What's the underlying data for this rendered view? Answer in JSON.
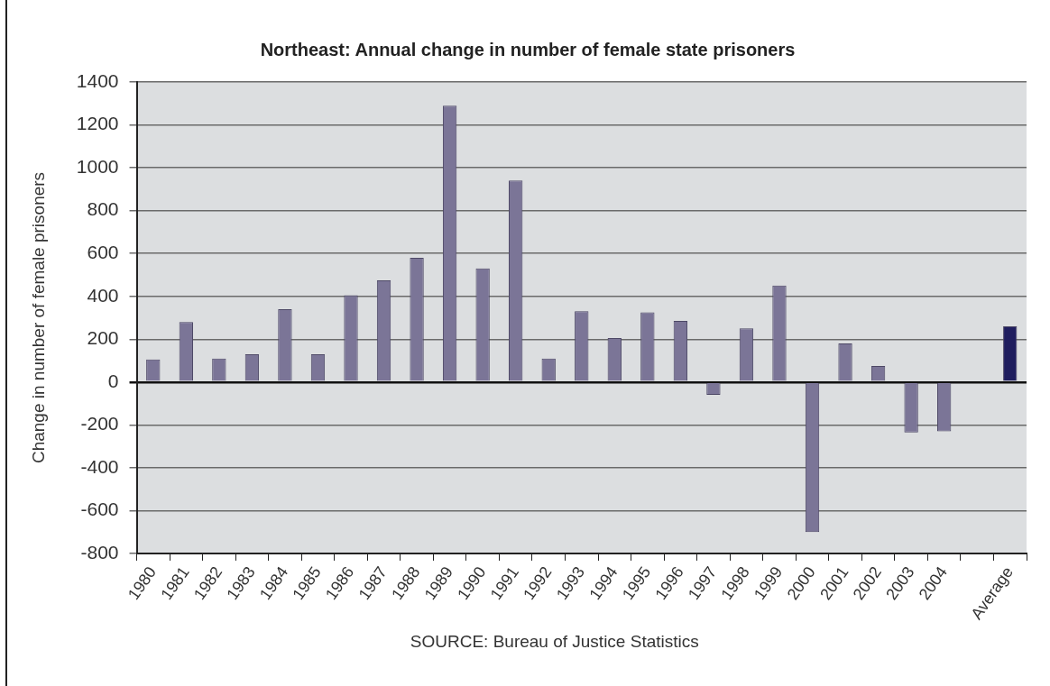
{
  "chart_data": {
    "type": "bar",
    "title": "Northeast: Annual change in number of female state prisoners",
    "ylabel": "Change in number of female prisoners",
    "annotations": [
      "SOURCE: Bureau of Justice Statistics"
    ],
    "categories": [
      "1980",
      "1981",
      "1982",
      "1983",
      "1984",
      "1985",
      "1986",
      "1987",
      "1988",
      "1989",
      "1990",
      "1991",
      "1992",
      "1993",
      "1994",
      "1995",
      "1996",
      "1997",
      "1998",
      "1999",
      "2000",
      "2001",
      "2002",
      "2003",
      "2004",
      null,
      "Average"
    ],
    "values": [
      105,
      280,
      110,
      130,
      340,
      130,
      405,
      475,
      580,
      1290,
      530,
      940,
      110,
      330,
      205,
      325,
      285,
      -60,
      250,
      450,
      -700,
      180,
      75,
      -235,
      -230,
      null,
      260
    ],
    "colors": [
      "#7b7597",
      "#7b7597",
      "#7b7597",
      "#7b7597",
      "#7b7597",
      "#7b7597",
      "#7b7597",
      "#7b7597",
      "#7b7597",
      "#7b7597",
      "#7b7597",
      "#7b7597",
      "#7b7597",
      "#7b7597",
      "#7b7597",
      "#7b7597",
      "#7b7597",
      "#7b7597",
      "#7b7597",
      "#7b7597",
      "#7b7597",
      "#7b7597",
      "#7b7597",
      "#7b7597",
      "#7b7597",
      "#7b7597",
      "#1f1d5e"
    ],
    "ylim": [
      -800,
      1400
    ],
    "yticks": [
      -800,
      -600,
      -400,
      -200,
      0,
      200,
      400,
      600,
      800,
      1000,
      1200,
      1400
    ],
    "grid": "y"
  }
}
